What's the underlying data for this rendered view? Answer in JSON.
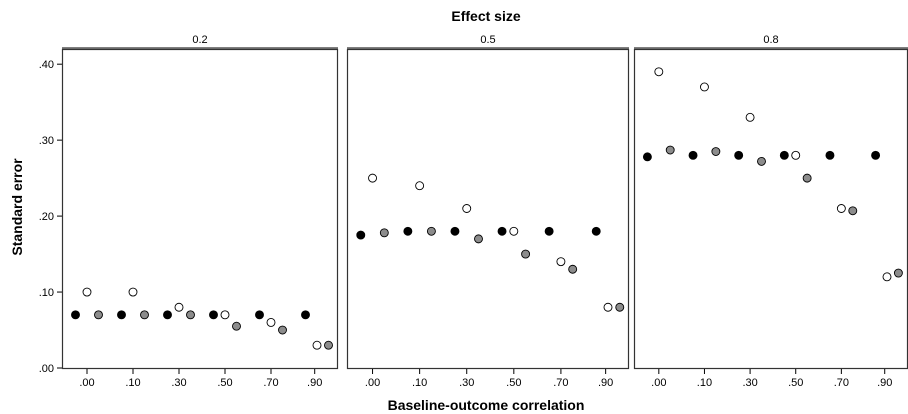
{
  "chart_data": {
    "type": "scatter",
    "title": "Effect size",
    "xlabel": "Baseline-outcome correlation",
    "ylabel": "Standard error",
    "ylim": [
      0,
      0.42
    ],
    "yticks": [
      {
        "value": 0.0,
        "label": ".00"
      },
      {
        "value": 0.1,
        "label": ".10"
      },
      {
        "value": 0.2,
        "label": ".20"
      },
      {
        "value": 0.3,
        "label": ".30"
      },
      {
        "value": 0.4,
        "label": ".40"
      }
    ],
    "xlim": [
      -0.1,
      1.0
    ],
    "colors": {
      "black": "#000000",
      "grey": "#8c8c8c",
      "white": "#ffffff"
    },
    "panels": [
      {
        "title": "0.2",
        "xticks": [
          {
            "value": 0.0,
            "label": ".00"
          },
          {
            "value": 0.2,
            "label": ".10"
          },
          {
            "value": 0.4,
            "label": ".30"
          },
          {
            "value": 0.6,
            "label": ".50"
          },
          {
            "value": 0.8,
            "label": ".70"
          },
          {
            "value": 0.99,
            "label": ".90"
          }
        ],
        "points": [
          {
            "x": -0.05,
            "y": 0.07,
            "fill": "black"
          },
          {
            "x": 0.0,
            "y": 0.1,
            "fill": "white"
          },
          {
            "x": 0.05,
            "y": 0.07,
            "fill": "grey"
          },
          {
            "x": 0.15,
            "y": 0.07,
            "fill": "black"
          },
          {
            "x": 0.2,
            "y": 0.1,
            "fill": "white"
          },
          {
            "x": 0.25,
            "y": 0.07,
            "fill": "grey"
          },
          {
            "x": 0.35,
            "y": 0.07,
            "fill": "black"
          },
          {
            "x": 0.4,
            "y": 0.08,
            "fill": "white"
          },
          {
            "x": 0.45,
            "y": 0.07,
            "fill": "grey"
          },
          {
            "x": 0.55,
            "y": 0.07,
            "fill": "black"
          },
          {
            "x": 0.6,
            "y": 0.07,
            "fill": "white"
          },
          {
            "x": 0.65,
            "y": 0.055,
            "fill": "grey"
          },
          {
            "x": 0.75,
            "y": 0.07,
            "fill": "black"
          },
          {
            "x": 0.8,
            "y": 0.06,
            "fill": "white"
          },
          {
            "x": 0.85,
            "y": 0.05,
            "fill": "grey"
          },
          {
            "x": 0.95,
            "y": 0.07,
            "fill": "black"
          },
          {
            "x": 1.0,
            "y": 0.03,
            "fill": "white"
          },
          {
            "x": 1.05,
            "y": 0.03,
            "fill": "grey"
          }
        ]
      },
      {
        "title": "0.5",
        "xticks": [
          {
            "value": 0.0,
            "label": ".00"
          },
          {
            "value": 0.2,
            "label": ".10"
          },
          {
            "value": 0.4,
            "label": ".30"
          },
          {
            "value": 0.6,
            "label": ".50"
          },
          {
            "value": 0.8,
            "label": ".70"
          },
          {
            "value": 0.99,
            "label": ".90"
          }
        ],
        "points": [
          {
            "x": -0.05,
            "y": 0.175,
            "fill": "black"
          },
          {
            "x": 0.0,
            "y": 0.25,
            "fill": "white"
          },
          {
            "x": 0.05,
            "y": 0.178,
            "fill": "grey"
          },
          {
            "x": 0.15,
            "y": 0.18,
            "fill": "black"
          },
          {
            "x": 0.2,
            "y": 0.24,
            "fill": "white"
          },
          {
            "x": 0.25,
            "y": 0.18,
            "fill": "grey"
          },
          {
            "x": 0.35,
            "y": 0.18,
            "fill": "black"
          },
          {
            "x": 0.4,
            "y": 0.21,
            "fill": "white"
          },
          {
            "x": 0.45,
            "y": 0.17,
            "fill": "grey"
          },
          {
            "x": 0.55,
            "y": 0.18,
            "fill": "black"
          },
          {
            "x": 0.6,
            "y": 0.18,
            "fill": "white"
          },
          {
            "x": 0.65,
            "y": 0.15,
            "fill": "grey"
          },
          {
            "x": 0.75,
            "y": 0.18,
            "fill": "black"
          },
          {
            "x": 0.8,
            "y": 0.14,
            "fill": "white"
          },
          {
            "x": 0.85,
            "y": 0.13,
            "fill": "grey"
          },
          {
            "x": 0.95,
            "y": 0.18,
            "fill": "black"
          },
          {
            "x": 1.0,
            "y": 0.08,
            "fill": "white"
          },
          {
            "x": 1.05,
            "y": 0.08,
            "fill": "grey"
          }
        ]
      },
      {
        "title": "0.8",
        "xticks": [
          {
            "value": 0.0,
            "label": ".00"
          },
          {
            "value": 0.2,
            "label": ".10"
          },
          {
            "value": 0.4,
            "label": ".30"
          },
          {
            "value": 0.6,
            "label": ".50"
          },
          {
            "value": 0.8,
            "label": ".70"
          },
          {
            "value": 0.99,
            "label": ".90"
          }
        ],
        "points": [
          {
            "x": -0.05,
            "y": 0.278,
            "fill": "black"
          },
          {
            "x": 0.0,
            "y": 0.39,
            "fill": "white"
          },
          {
            "x": 0.05,
            "y": 0.287,
            "fill": "grey"
          },
          {
            "x": 0.15,
            "y": 0.28,
            "fill": "black"
          },
          {
            "x": 0.2,
            "y": 0.37,
            "fill": "white"
          },
          {
            "x": 0.25,
            "y": 0.285,
            "fill": "grey"
          },
          {
            "x": 0.35,
            "y": 0.28,
            "fill": "black"
          },
          {
            "x": 0.4,
            "y": 0.33,
            "fill": "white"
          },
          {
            "x": 0.45,
            "y": 0.272,
            "fill": "grey"
          },
          {
            "x": 0.55,
            "y": 0.28,
            "fill": "black"
          },
          {
            "x": 0.6,
            "y": 0.28,
            "fill": "white"
          },
          {
            "x": 0.65,
            "y": 0.25,
            "fill": "grey"
          },
          {
            "x": 0.75,
            "y": 0.28,
            "fill": "black"
          },
          {
            "x": 0.8,
            "y": 0.21,
            "fill": "white"
          },
          {
            "x": 0.85,
            "y": 0.207,
            "fill": "grey"
          },
          {
            "x": 0.95,
            "y": 0.28,
            "fill": "black"
          },
          {
            "x": 1.0,
            "y": 0.12,
            "fill": "white"
          },
          {
            "x": 1.05,
            "y": 0.125,
            "fill": "grey"
          }
        ]
      }
    ]
  }
}
